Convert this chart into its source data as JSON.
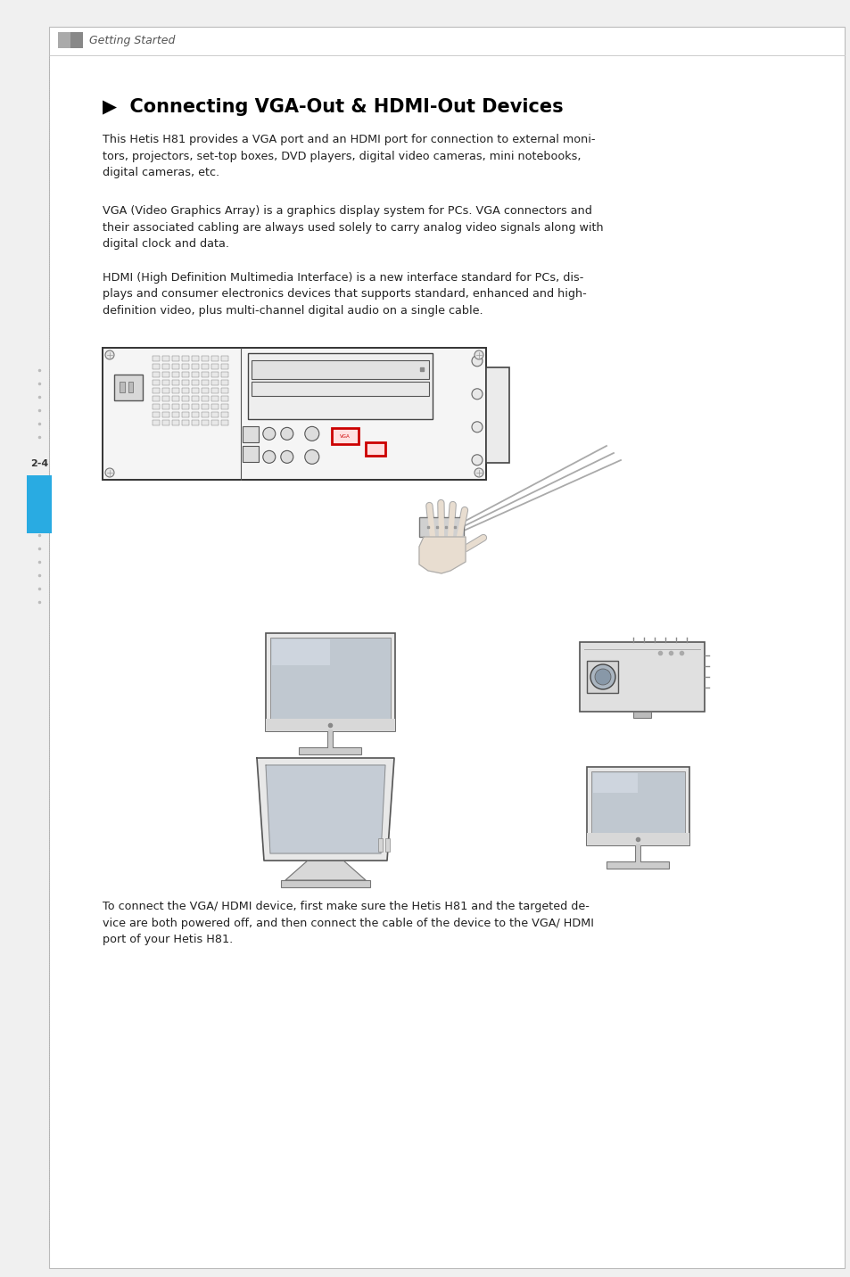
{
  "bg_color": "#f0f0f0",
  "page_bg": "#ffffff",
  "header_text": "Getting Started",
  "title": "▶  Connecting VGA-Out & HDMI-Out Devices",
  "para1": "This Hetis H81 provides a VGA port and an HDMI port for connection to external moni-\ntors, projectors, set-top boxes, DVD players, digital video cameras, mini notebooks,\ndigital cameras, etc.",
  "para2": "VGA (Video Graphics Array) is a graphics display system for PCs. VGA connectors and\ntheir associated cabling are always used solely to carry analog video signals along with\ndigital clock and data.",
  "para3": "HDMI (High Definition Multimedia Interface) is a new interface standard for PCs, dis-\nplays and consumer electronics devices that supports standard, enhanced and high-\ndefinition video, plus multi-channel digital audio on a single cable.",
  "para4": "To connect the VGA/ HDMI device, first make sure the Hetis H81 and the targeted de-\nvice are both powered off, and then connect the cable of the device to the VGA/ HDMI\nport of your Hetis H81.",
  "page_number": "2-4",
  "text_color": "#222222",
  "accent_color": "#29abe2"
}
